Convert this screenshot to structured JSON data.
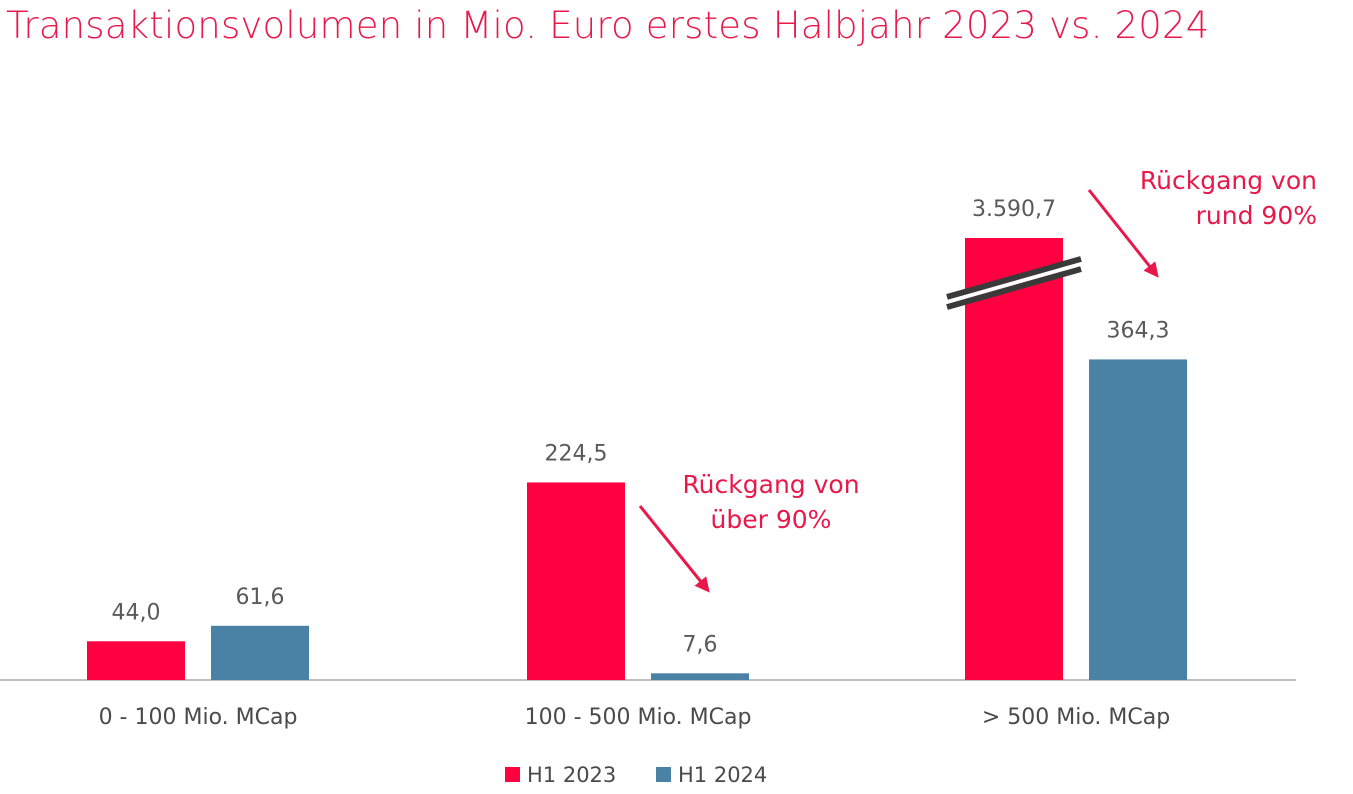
{
  "colors": {
    "h1_2023": "#ff0040",
    "h1_2024": "#4a82a6",
    "accent": "#e8194a",
    "axis": "#bfbfbf",
    "break_mark": "#3a3a3a"
  },
  "chart_data": {
    "type": "bar",
    "title": "Transaktionsvolumen in Mio. Euro erstes Halbjahr 2023 vs. 2024",
    "categories": [
      "0 - 100 Mio. MCap",
      "100 - 500 Mio. MCap",
      "> 500 Mio. MCap"
    ],
    "series": [
      {
        "name": "H1 2023",
        "values": [
          44.0,
          224.5,
          3590.7
        ],
        "labels": [
          "44,0",
          "224,5",
          "3.590,7"
        ]
      },
      {
        "name": "H1 2024",
        "values": [
          61.6,
          7.6,
          364.3
        ],
        "labels": [
          "61,6",
          "7,6",
          "364,3"
        ]
      }
    ],
    "axis_break": {
      "category": "> 500 Mio. MCap",
      "series": "H1 2023"
    },
    "annotations": [
      {
        "category": "100 - 500 Mio. MCap",
        "lines": [
          "Rückgang von",
          "über 90%"
        ]
      },
      {
        "category": "> 500 Mio. MCap",
        "lines": [
          "Rückgang von",
          "rund 90%"
        ]
      }
    ],
    "legend": {
      "position": "bottom",
      "entries": [
        "H1 2023",
        "H1 2024"
      ]
    },
    "grid": false
  }
}
